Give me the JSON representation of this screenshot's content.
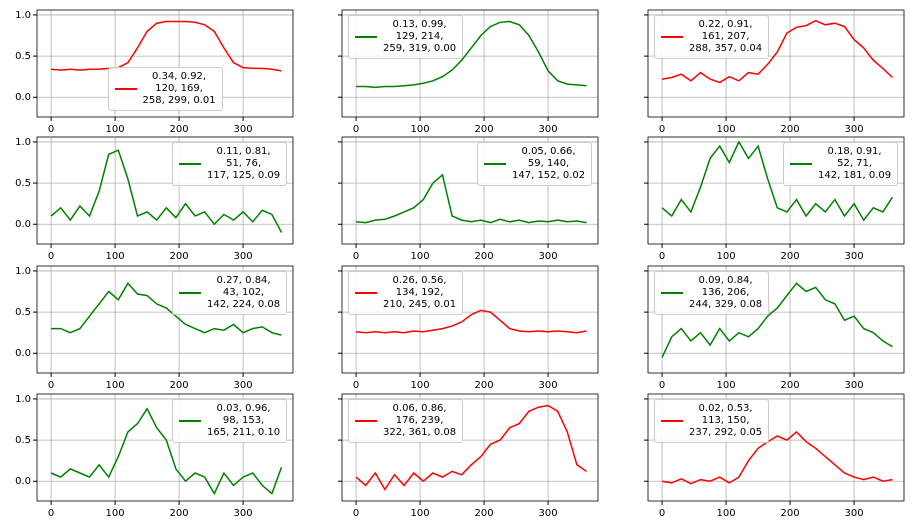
{
  "chart_data": [
    {
      "type": "line",
      "x": [
        0,
        15,
        30,
        45,
        60,
        75,
        90,
        105,
        120,
        135,
        150,
        165,
        180,
        195,
        210,
        225,
        240,
        255,
        270,
        285,
        300,
        315,
        330,
        345,
        360
      ],
      "series": [
        {
          "name": "0.34, 0.92,\n120, 169,\n258, 299, 0.01",
          "color": "#ff0000",
          "values": [
            0.34,
            0.33,
            0.34,
            0.33,
            0.34,
            0.34,
            0.35,
            0.36,
            0.42,
            0.6,
            0.8,
            0.9,
            0.92,
            0.92,
            0.92,
            0.91,
            0.88,
            0.8,
            0.6,
            0.42,
            0.36,
            0.35,
            0.35,
            0.34,
            0.32
          ]
        }
      ],
      "xlim": [
        -22,
        378
      ],
      "ylim": [
        -0.24,
        1.06
      ],
      "xticks": [
        0,
        100,
        200,
        300
      ],
      "yticks": [
        {
          "value": 0,
          "label": "0.0"
        },
        {
          "value": 0.5,
          "label": "0.5"
        },
        {
          "value": 1,
          "label": "1.0"
        }
      ],
      "grid": true,
      "legend": "lower center"
    },
    {
      "type": "line",
      "x": [
        0,
        15,
        30,
        45,
        60,
        75,
        90,
        105,
        120,
        135,
        150,
        165,
        180,
        195,
        210,
        225,
        240,
        255,
        270,
        285,
        300,
        315,
        330,
        345,
        360
      ],
      "series": [
        {
          "name": "0.13, 0.99,\n129, 214,\n259, 319, 0.00",
          "color": "#008000",
          "values": [
            0.13,
            0.13,
            0.12,
            0.13,
            0.13,
            0.14,
            0.15,
            0.17,
            0.2,
            0.25,
            0.33,
            0.45,
            0.6,
            0.75,
            0.86,
            0.91,
            0.92,
            0.88,
            0.75,
            0.55,
            0.32,
            0.2,
            0.16,
            0.15,
            0.14
          ]
        }
      ],
      "xlim": [
        -22,
        378
      ],
      "ylim": [
        -0.24,
        1.06
      ],
      "xticks": [
        0,
        100,
        200,
        300
      ],
      "yticks": [
        0,
        0.5,
        1
      ],
      "grid": true,
      "legend": "upper left"
    },
    {
      "type": "line",
      "x": [
        0,
        15,
        30,
        45,
        60,
        75,
        90,
        105,
        120,
        135,
        150,
        165,
        180,
        195,
        210,
        225,
        240,
        255,
        270,
        285,
        300,
        315,
        330,
        345,
        360
      ],
      "series": [
        {
          "name": "0.22, 0.91,\n161, 207,\n288, 357, 0.04",
          "color": "#ff0000",
          "values": [
            0.22,
            0.24,
            0.28,
            0.2,
            0.3,
            0.22,
            0.18,
            0.25,
            0.2,
            0.3,
            0.28,
            0.4,
            0.55,
            0.78,
            0.85,
            0.87,
            0.93,
            0.88,
            0.9,
            0.86,
            0.7,
            0.6,
            0.45,
            0.35,
            0.24
          ]
        }
      ],
      "xlim": [
        -22,
        378
      ],
      "ylim": [
        -0.24,
        1.06
      ],
      "xticks": [
        0,
        100,
        200,
        300
      ],
      "yticks": [
        0,
        0.5,
        1
      ],
      "grid": true,
      "legend": "upper left"
    },
    {
      "type": "line",
      "x": [
        0,
        15,
        30,
        45,
        60,
        75,
        90,
        105,
        120,
        135,
        150,
        165,
        180,
        195,
        210,
        225,
        240,
        255,
        270,
        285,
        300,
        315,
        330,
        345,
        360
      ],
      "series": [
        {
          "name": "0.11, 0.81,\n51, 76,\n117, 125, 0.09",
          "color": "#008000",
          "values": [
            0.1,
            0.2,
            0.05,
            0.22,
            0.1,
            0.4,
            0.85,
            0.9,
            0.55,
            0.1,
            0.15,
            0.05,
            0.2,
            0.08,
            0.25,
            0.1,
            0.15,
            0.0,
            0.12,
            0.05,
            0.15,
            0.03,
            0.17,
            0.12,
            -0.1
          ]
        }
      ],
      "xlim": [
        -22,
        378
      ],
      "ylim": [
        -0.24,
        1.06
      ],
      "xticks": [
        0,
        100,
        200,
        300
      ],
      "yticks": [
        {
          "value": 0,
          "label": "0.0"
        },
        {
          "value": 0.5,
          "label": "0.5"
        },
        {
          "value": 1,
          "label": "1.0"
        }
      ],
      "grid": true,
      "legend": "upper right"
    },
    {
      "type": "line",
      "x": [
        0,
        15,
        30,
        45,
        60,
        75,
        90,
        105,
        120,
        135,
        150,
        165,
        180,
        195,
        210,
        225,
        240,
        255,
        270,
        285,
        300,
        315,
        330,
        345,
        360
      ],
      "series": [
        {
          "name": "0.05, 0.66,\n59, 140,\n147, 152, 0.02",
          "color": "#008000",
          "values": [
            0.03,
            0.02,
            0.05,
            0.06,
            0.1,
            0.15,
            0.2,
            0.3,
            0.5,
            0.6,
            0.1,
            0.05,
            0.03,
            0.05,
            0.02,
            0.06,
            0.03,
            0.05,
            0.02,
            0.04,
            0.03,
            0.05,
            0.03,
            0.04,
            0.02
          ]
        }
      ],
      "xlim": [
        -22,
        378
      ],
      "ylim": [
        -0.24,
        1.06
      ],
      "xticks": [
        0,
        100,
        200,
        300
      ],
      "yticks": [
        0,
        0.5,
        1
      ],
      "grid": true,
      "legend": "upper right"
    },
    {
      "type": "line",
      "x": [
        0,
        15,
        30,
        45,
        60,
        75,
        90,
        105,
        120,
        135,
        150,
        165,
        180,
        195,
        210,
        225,
        240,
        255,
        270,
        285,
        300,
        315,
        330,
        345,
        360
      ],
      "series": [
        {
          "name": "0.18, 0.91,\n52, 71,\n142, 181, 0.09",
          "color": "#008000",
          "values": [
            0.2,
            0.1,
            0.3,
            0.15,
            0.45,
            0.8,
            0.95,
            0.75,
            1.0,
            0.8,
            0.95,
            0.55,
            0.2,
            0.15,
            0.3,
            0.1,
            0.25,
            0.15,
            0.3,
            0.1,
            0.25,
            0.05,
            0.2,
            0.15,
            0.33
          ]
        }
      ],
      "xlim": [
        -22,
        378
      ],
      "ylim": [
        -0.24,
        1.06
      ],
      "xticks": [
        0,
        100,
        200,
        300
      ],
      "yticks": [
        0,
        0.5,
        1
      ],
      "grid": true,
      "legend": "upper right"
    },
    {
      "type": "line",
      "x": [
        0,
        15,
        30,
        45,
        60,
        75,
        90,
        105,
        120,
        135,
        150,
        165,
        180,
        195,
        210,
        225,
        240,
        255,
        270,
        285,
        300,
        315,
        330,
        345,
        360
      ],
      "series": [
        {
          "name": "0.27, 0.84,\n43, 102,\n142, 224, 0.08",
          "color": "#008000",
          "values": [
            0.3,
            0.3,
            0.25,
            0.3,
            0.45,
            0.6,
            0.75,
            0.65,
            0.85,
            0.72,
            0.7,
            0.6,
            0.55,
            0.45,
            0.35,
            0.3,
            0.25,
            0.3,
            0.28,
            0.35,
            0.25,
            0.3,
            0.32,
            0.25,
            0.22
          ]
        }
      ],
      "xlim": [
        -22,
        378
      ],
      "ylim": [
        -0.24,
        1.06
      ],
      "xticks": [
        0,
        100,
        200,
        300
      ],
      "yticks": [
        {
          "value": 0,
          "label": "0.0"
        },
        {
          "value": 0.5,
          "label": "0.5"
        },
        {
          "value": 1,
          "label": "1.0"
        }
      ],
      "grid": true,
      "legend": "upper right"
    },
    {
      "type": "line",
      "x": [
        0,
        15,
        30,
        45,
        60,
        75,
        90,
        105,
        120,
        135,
        150,
        165,
        180,
        195,
        210,
        225,
        240,
        255,
        270,
        285,
        300,
        315,
        330,
        345,
        360
      ],
      "series": [
        {
          "name": "0.26, 0.56,\n134, 192,\n210, 245, 0.01",
          "color": "#ff0000",
          "values": [
            0.26,
            0.25,
            0.26,
            0.25,
            0.26,
            0.25,
            0.27,
            0.26,
            0.28,
            0.3,
            0.33,
            0.38,
            0.47,
            0.52,
            0.5,
            0.4,
            0.3,
            0.27,
            0.26,
            0.27,
            0.26,
            0.27,
            0.26,
            0.25,
            0.27
          ]
        }
      ],
      "xlim": [
        -22,
        378
      ],
      "ylim": [
        -0.24,
        1.06
      ],
      "xticks": [
        0,
        100,
        200,
        300
      ],
      "yticks": [
        0,
        0.5,
        1
      ],
      "grid": true,
      "legend": "upper left"
    },
    {
      "type": "line",
      "x": [
        0,
        15,
        30,
        45,
        60,
        75,
        90,
        105,
        120,
        135,
        150,
        165,
        180,
        195,
        210,
        225,
        240,
        255,
        270,
        285,
        300,
        315,
        330,
        345,
        360
      ],
      "series": [
        {
          "name": "0.09, 0.84,\n136, 206,\n244, 329, 0.08",
          "color": "#008000",
          "values": [
            -0.05,
            0.2,
            0.3,
            0.15,
            0.25,
            0.1,
            0.3,
            0.15,
            0.25,
            0.2,
            0.3,
            0.45,
            0.55,
            0.7,
            0.85,
            0.75,
            0.8,
            0.65,
            0.6,
            0.4,
            0.45,
            0.3,
            0.25,
            0.15,
            0.08
          ]
        }
      ],
      "xlim": [
        -22,
        378
      ],
      "ylim": [
        -0.24,
        1.06
      ],
      "xticks": [
        0,
        100,
        200,
        300
      ],
      "yticks": [
        0,
        0.5,
        1
      ],
      "grid": true,
      "legend": "upper left"
    },
    {
      "type": "line",
      "x": [
        0,
        15,
        30,
        45,
        60,
        75,
        90,
        105,
        120,
        135,
        150,
        165,
        180,
        195,
        210,
        225,
        240,
        255,
        270,
        285,
        300,
        315,
        330,
        345,
        360
      ],
      "series": [
        {
          "name": "0.03, 0.96,\n98, 153,\n165, 211, 0.10",
          "color": "#008000",
          "values": [
            0.1,
            0.05,
            0.15,
            0.1,
            0.05,
            0.2,
            0.05,
            0.3,
            0.6,
            0.7,
            0.88,
            0.65,
            0.5,
            0.15,
            0.0,
            0.1,
            0.05,
            -0.15,
            0.1,
            -0.05,
            0.05,
            0.1,
            -0.05,
            -0.15,
            0.17
          ]
        }
      ],
      "xlim": [
        -22,
        378
      ],
      "ylim": [
        -0.24,
        1.06
      ],
      "xticks": [
        0,
        100,
        200,
        300
      ],
      "yticks": [
        {
          "value": 0,
          "label": "0.0"
        },
        {
          "value": 0.5,
          "label": "0.5"
        },
        {
          "value": 1,
          "label": "1.0"
        }
      ],
      "grid": true,
      "legend": "upper right"
    },
    {
      "type": "line",
      "x": [
        0,
        15,
        30,
        45,
        60,
        75,
        90,
        105,
        120,
        135,
        150,
        165,
        180,
        195,
        210,
        225,
        240,
        255,
        270,
        285,
        300,
        315,
        330,
        345,
        360
      ],
      "series": [
        {
          "name": "0.06, 0.86,\n176, 239,\n322, 361, 0.08",
          "color": "#ff0000",
          "values": [
            0.05,
            -0.05,
            0.1,
            -0.1,
            0.08,
            -0.05,
            0.1,
            0.0,
            0.1,
            0.05,
            0.12,
            0.08,
            0.2,
            0.3,
            0.45,
            0.5,
            0.65,
            0.7,
            0.85,
            0.9,
            0.92,
            0.85,
            0.6,
            0.2,
            0.12
          ]
        }
      ],
      "xlim": [
        -22,
        378
      ],
      "ylim": [
        -0.24,
        1.06
      ],
      "xticks": [
        0,
        100,
        200,
        300
      ],
      "yticks": [
        0,
        0.5,
        1
      ],
      "grid": true,
      "legend": "upper left"
    },
    {
      "type": "line",
      "x": [
        0,
        15,
        30,
        45,
        60,
        75,
        90,
        105,
        120,
        135,
        150,
        165,
        180,
        195,
        210,
        225,
        240,
        255,
        270,
        285,
        300,
        315,
        330,
        345,
        360
      ],
      "series": [
        {
          "name": "0.02, 0.53,\n113, 150,\n237, 292, 0.05",
          "color": "#ff0000",
          "values": [
            0.0,
            -0.02,
            0.03,
            -0.03,
            0.02,
            0.0,
            0.05,
            -0.02,
            0.05,
            0.25,
            0.4,
            0.48,
            0.55,
            0.5,
            0.6,
            0.48,
            0.4,
            0.3,
            0.2,
            0.1,
            0.05,
            0.02,
            0.05,
            0.0,
            0.02
          ]
        }
      ],
      "xlim": [
        -22,
        378
      ],
      "ylim": [
        -0.24,
        1.06
      ],
      "xticks": [
        0,
        100,
        200,
        300
      ],
      "yticks": [
        0,
        0.5,
        1
      ],
      "grid": true,
      "legend": "upper left"
    }
  ]
}
